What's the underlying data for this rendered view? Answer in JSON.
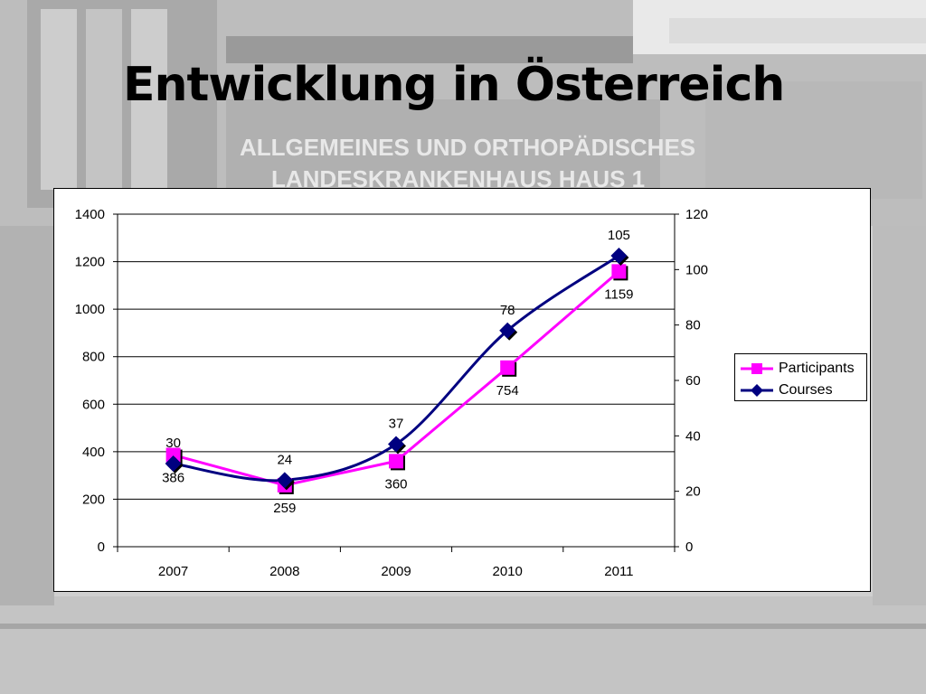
{
  "slide": {
    "title": "Entwicklung in Österreich",
    "background_sign_line1": "ALLGEMEINES UND ORTHOPÄDISCHES",
    "background_sign_line2": "LANDESKRANKENHAUS HAUS 1"
  },
  "chart_data": {
    "type": "line",
    "categories": [
      "2007",
      "2008",
      "2009",
      "2010",
      "2011"
    ],
    "series": [
      {
        "name": "Participants",
        "axis": "left",
        "values": [
          386,
          259,
          360,
          754,
          1159
        ],
        "labels": [
          "386",
          "259",
          "360",
          "754",
          "1159"
        ],
        "color": "#ff00ff",
        "marker": "square"
      },
      {
        "name": "Courses",
        "axis": "right",
        "values": [
          30,
          24,
          37,
          78,
          105
        ],
        "labels": [
          "30",
          "24",
          "37",
          "78",
          "105"
        ],
        "color": "#000080",
        "marker": "diamond",
        "smooth": true
      }
    ],
    "y_left": {
      "min": 0,
      "max": 1400,
      "ticks": [
        "0",
        "200",
        "400",
        "600",
        "800",
        "1000",
        "1200",
        "1400"
      ]
    },
    "y_right": {
      "min": 0,
      "max": 120,
      "ticks": [
        "0",
        "20",
        "40",
        "60",
        "80",
        "100",
        "120"
      ]
    },
    "grid": "horizontal",
    "legend_position": "right"
  }
}
